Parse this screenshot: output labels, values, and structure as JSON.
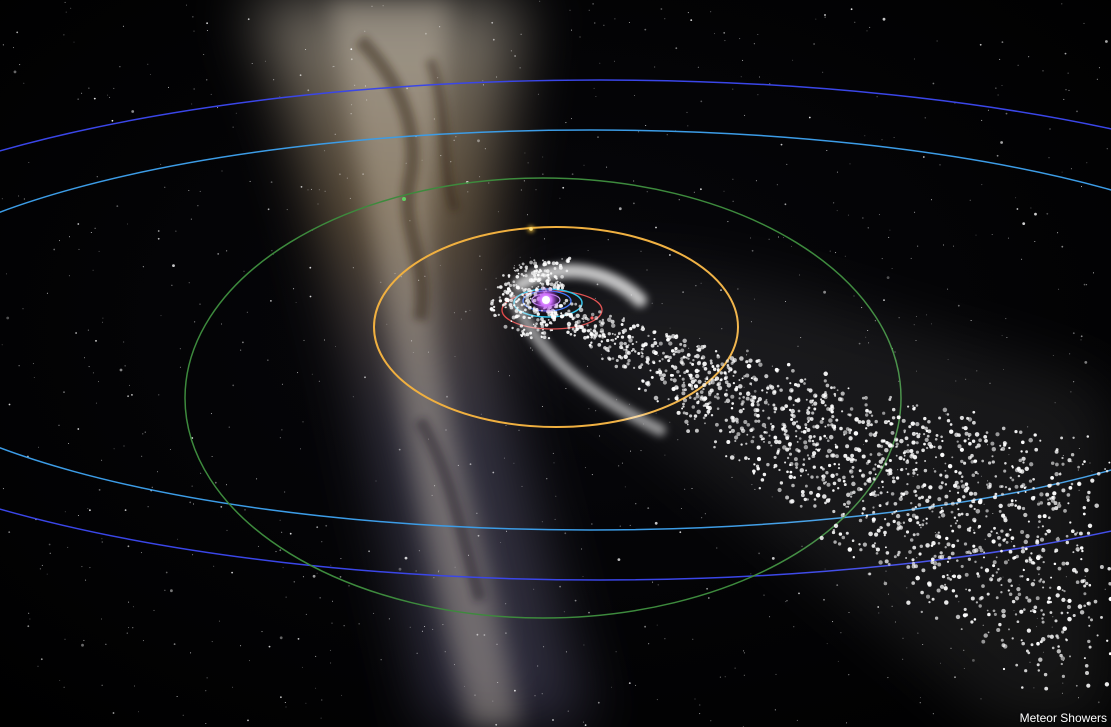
{
  "caption": "Meteor Showers",
  "colors": {
    "background": "#000000",
    "galaxy_core": "#c8a878",
    "orbit_outer_blue": "#3a46e8",
    "orbit_light_blue": "#3c9ce6",
    "orbit_green": "#3d8a3d",
    "orbit_orange": "#f0b040",
    "orbit_red": "#e04848",
    "orbit_cyan": "#28c0e8",
    "sun_purple": "#b040e0",
    "meteor_stream": "#ffffff"
  },
  "icons": [
    "sun-marker",
    "planet-marker-orange",
    "planet-marker-green"
  ]
}
